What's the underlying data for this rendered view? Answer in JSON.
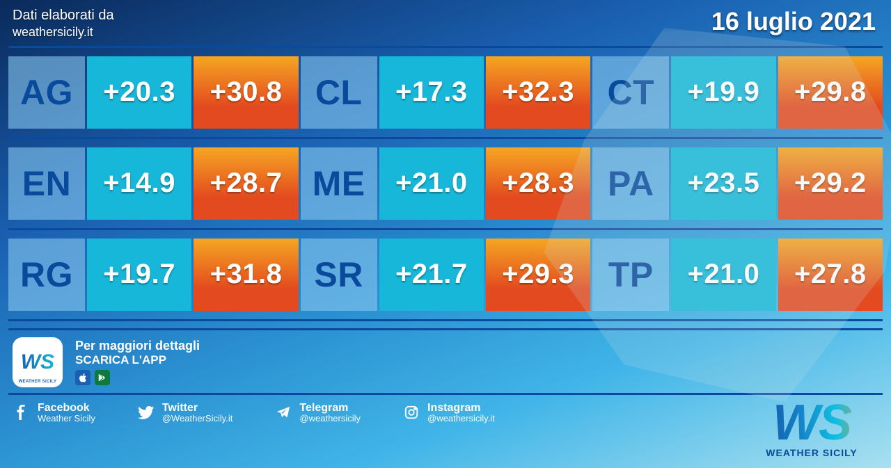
{
  "header": {
    "source_line1": "Dati elaborati da",
    "source_line2": "weathersicily.it",
    "date": "16 luglio 2021"
  },
  "colors": {
    "min_bg": "#16b7d8",
    "max_bg": "#e34a1f",
    "max_gradient_to": "#f5a623",
    "code_text": "#0a4a9c",
    "row_border": "#0a4a9c"
  },
  "grid": {
    "rows": [
      [
        {
          "code": "AG",
          "min": "+20.3",
          "max": "+30.8"
        },
        {
          "code": "CL",
          "min": "+17.3",
          "max": "+32.3"
        },
        {
          "code": "CT",
          "min": "+19.9",
          "max": "+29.8"
        }
      ],
      [
        {
          "code": "EN",
          "min": "+14.9",
          "max": "+28.7"
        },
        {
          "code": "ME",
          "min": "+21.0",
          "max": "+28.3"
        },
        {
          "code": "PA",
          "min": "+23.5",
          "max": "+29.2"
        }
      ],
      [
        {
          "code": "RG",
          "min": "+19.7",
          "max": "+31.8"
        },
        {
          "code": "SR",
          "min": "+21.7",
          "max": "+29.3"
        },
        {
          "code": "TP",
          "min": "+21.0",
          "max": "+27.8"
        }
      ]
    ]
  },
  "footer": {
    "app_line1": "Per maggiori dettagli",
    "app_line2": "SCARICA L'APP",
    "brand_short": "WS",
    "brand_tag": "WEATHER SICILY",
    "socials": [
      {
        "icon": "facebook",
        "name": "Facebook",
        "handle": "Weather Sicily"
      },
      {
        "icon": "twitter",
        "name": "Twitter",
        "handle": "@WeatherSicily.it"
      },
      {
        "icon": "telegram",
        "name": "Telegram",
        "handle": "@weathersicily"
      },
      {
        "icon": "instagram",
        "name": "Instagram",
        "handle": "@weathersicily.it"
      }
    ],
    "brand_label": "WEATHER SICILY"
  }
}
